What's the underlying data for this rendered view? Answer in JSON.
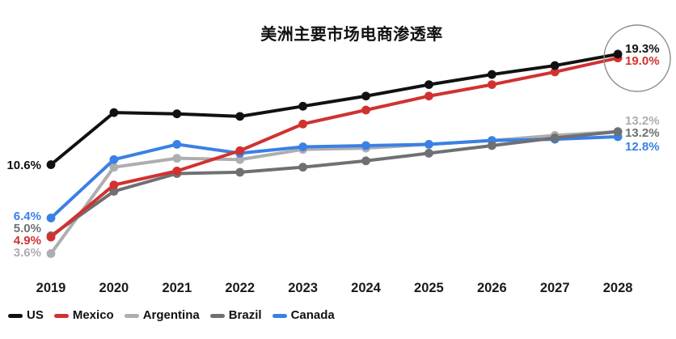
{
  "title": "美洲主要市场电商渗透率",
  "chart_data": {
    "type": "line",
    "x": [
      2019,
      2020,
      2021,
      2022,
      2023,
      2024,
      2025,
      2026,
      2027,
      2028
    ],
    "unit": "%",
    "ylim": [
      0,
      21
    ],
    "grid": false,
    "legend_position": "bottom-left",
    "series": [
      {
        "name": "US",
        "color": "#111111",
        "values": [
          10.6,
          14.7,
          14.6,
          14.4,
          15.2,
          16.0,
          16.9,
          17.7,
          18.4,
          19.3
        ],
        "start_label": "10.6%",
        "end_label": "19.3%"
      },
      {
        "name": "Mexico",
        "color": "#d13230",
        "values": [
          4.9,
          9.0,
          10.1,
          11.7,
          13.8,
          14.9,
          16.0,
          16.9,
          17.9,
          19.0
        ],
        "start_label": "4.9%",
        "end_label": "19.0%"
      },
      {
        "name": "Argentina",
        "color": "#aeaeb0",
        "values": [
          3.6,
          10.4,
          11.1,
          11.0,
          11.8,
          11.9,
          12.2,
          12.5,
          12.9,
          13.2
        ],
        "start_label": "3.6%",
        "end_label": "13.2%"
      },
      {
        "name": "Brazil",
        "color": "#6e7073",
        "values": [
          5.0,
          8.5,
          9.9,
          10.0,
          10.4,
          10.9,
          11.5,
          12.1,
          12.7,
          13.2
        ],
        "start_label": "5.0%",
        "end_label": "13.2%"
      },
      {
        "name": "Canada",
        "color": "#3b80e5",
        "values": [
          6.4,
          11.0,
          12.2,
          11.5,
          12.0,
          12.1,
          12.2,
          12.5,
          12.6,
          12.8
        ],
        "start_label": "6.4%",
        "end_label": "12.8%"
      }
    ],
    "annotation": {
      "type": "circle-highlight",
      "targets": [
        "US@2028",
        "Mexico@2028"
      ],
      "stroke_color": "#8e8e8e"
    }
  }
}
